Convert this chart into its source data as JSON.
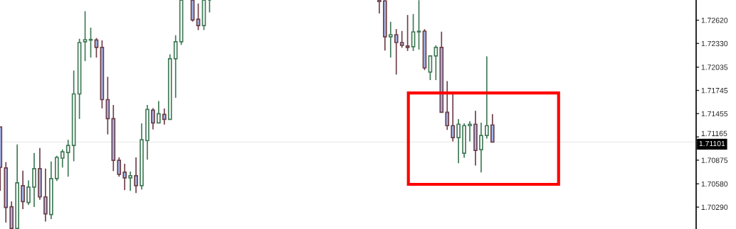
{
  "chart_data": {
    "type": "candlestick",
    "categories": [
      null,
      null,
      null,
      null,
      null,
      null,
      null,
      null,
      null,
      null,
      null,
      null,
      null,
      null,
      null,
      null,
      null,
      null,
      null,
      null,
      null,
      null,
      null,
      null,
      null,
      null,
      null,
      null,
      null,
      null,
      null,
      null,
      null,
      null,
      null,
      null,
      null,
      null,
      null,
      null,
      null,
      null,
      null,
      null,
      null,
      null,
      null,
      null,
      null,
      null,
      null,
      null,
      null,
      null,
      null,
      null,
      null,
      null,
      null,
      null,
      null,
      null,
      null,
      null,
      null,
      null,
      null,
      null,
      null,
      null,
      null,
      null,
      null,
      null,
      null,
      null,
      null,
      null,
      null,
      null,
      null,
      null,
      null,
      null,
      null,
      null,
      null,
      null,
      null,
      null,
      null,
      null,
      null,
      null,
      null,
      null,
      null,
      null,
      null,
      null,
      null,
      null,
      null,
      null,
      null,
      null,
      null,
      null,
      null,
      null,
      null,
      null,
      null,
      null,
      null,
      null,
      null,
      null,
      null,
      null,
      null,
      null,
      null,
      null
    ],
    "ohlc": [
      [
        1.7129,
        1.7129,
        1.70493,
        1.70786
      ],
      [
        1.70778,
        1.70851,
        1.70097,
        1.70285
      ],
      [
        1.70294,
        1.70361,
        1.70025,
        1.70025
      ],
      [
        1.70025,
        1.7107,
        1.70025,
        1.70593
      ],
      [
        1.70558,
        1.70743,
        1.70264,
        1.70358
      ],
      [
        1.70347,
        1.70622,
        1.70317,
        1.7054
      ],
      [
        1.7054,
        1.70965,
        1.70291,
        1.70769
      ],
      [
        1.70769,
        1.71026,
        1.70382,
        1.70417
      ],
      [
        1.70417,
        1.70771,
        1.7011,
        1.70206
      ],
      [
        1.70197,
        1.70859,
        1.70141,
        1.70646
      ],
      [
        1.70646,
        1.7093,
        1.70616,
        1.7091
      ],
      [
        1.70901,
        1.71009,
        1.70783,
        1.7098
      ],
      [
        1.70971,
        1.71129,
        1.70669,
        1.71059
      ],
      [
        1.71059,
        1.71993,
        1.70862,
        1.71701
      ],
      [
        1.71701,
        1.72389,
        1.71389,
        1.72342
      ],
      [
        1.72351,
        1.72732,
        1.7211,
        1.72377
      ],
      [
        1.72372,
        1.72527,
        1.72154,
        1.7238
      ],
      [
        1.72374,
        1.72398,
        1.72154,
        1.72281
      ],
      [
        1.72281,
        1.72369,
        1.71521,
        1.7163
      ],
      [
        1.7163,
        1.71914,
        1.71196,
        1.71393
      ],
      [
        1.71393,
        1.71563,
        1.70739,
        1.70874
      ],
      [
        1.70874,
        1.7091,
        1.70669,
        1.70699
      ],
      [
        1.70725,
        1.7083,
        1.70502,
        1.70655
      ],
      [
        1.70655,
        1.70734,
        1.70493,
        1.70681
      ],
      [
        1.70681,
        1.7091,
        1.70466,
        1.70558
      ],
      [
        1.70558,
        1.71334,
        1.7051,
        1.71129
      ],
      [
        1.7112,
        1.71563,
        1.7088,
        1.71507
      ],
      [
        1.71498,
        1.71525,
        1.71258,
        1.7134
      ],
      [
        1.7134,
        1.71613,
        1.7134,
        1.71454
      ],
      [
        1.71446,
        1.71519,
        1.71319,
        1.71384
      ],
      [
        1.71384,
        1.72195,
        1.71384,
        1.7214
      ],
      [
        1.7214,
        1.72433,
        1.71653,
        1.72351
      ],
      [
        1.72351,
        1.7287,
        1.72312,
        1.7287
      ],
      null,
      [
        1.7287,
        1.7287,
        1.72602,
        1.72624
      ],
      [
        1.72632,
        1.72828,
        1.72497,
        1.72553
      ],
      [
        1.72553,
        1.7287,
        1.72497,
        1.7287
      ],
      [
        1.7287,
        1.7287,
        1.72717,
        1.7287
      ],
      null,
      null,
      null,
      null,
      null,
      null,
      null,
      null,
      null,
      null,
      null,
      null,
      null,
      null,
      null,
      null,
      null,
      null,
      null,
      null,
      null,
      null,
      null,
      null,
      null,
      null,
      null,
      null,
      null,
      [
        1.7287,
        1.7287,
        1.72703,
        1.72852
      ],
      [
        1.72861,
        1.7287,
        1.72242,
        1.72413
      ],
      [
        1.72413,
        1.726,
        1.72154,
        1.72439
      ],
      [
        1.72439,
        1.72509,
        1.71943,
        1.72342
      ],
      [
        1.72342,
        1.72486,
        1.72277,
        1.72307
      ],
      [
        1.72298,
        1.72685,
        1.72237,
        1.72281
      ],
      [
        1.7229,
        1.72697,
        1.72237,
        1.72474
      ],
      [
        1.72474,
        1.7287,
        1.72254,
        1.72482
      ],
      [
        1.72483,
        1.72509,
        1.71999,
        1.72026
      ],
      [
        1.71973,
        1.72175,
        1.71873,
        1.72175
      ],
      [
        1.72175,
        1.72307,
        1.71873,
        1.72281
      ],
      [
        1.72281,
        1.72477,
        1.71472,
        1.71472
      ],
      [
        1.71472,
        1.71861,
        1.71252,
        1.71305
      ],
      [
        1.71305,
        1.71706,
        1.71108,
        1.71156
      ],
      [
        1.71156,
        1.71387,
        1.70836,
        1.71323
      ],
      [
        1.70962,
        1.71334,
        1.70906,
        1.71305
      ],
      [
        1.71305,
        1.7136,
        1.71108,
        1.71323
      ],
      [
        1.71323,
        1.71492,
        1.70809,
        1.70997
      ],
      [
        1.71006,
        1.71343,
        1.70721,
        1.71182
      ],
      [
        1.71182,
        1.72169,
        1.71143,
        1.71305
      ],
      [
        1.71314,
        1.71448,
        1.71101,
        1.71101
      ],
      null,
      null,
      null,
      null,
      null,
      null,
      null,
      null,
      null,
      null,
      null,
      null,
      null,
      null,
      null,
      null,
      null,
      null,
      null,
      null,
      null,
      null,
      null,
      null,
      null,
      null,
      null,
      null,
      null,
      null,
      null,
      null,
      null,
      null,
      null,
      null
    ],
    "colors": [
      "#a4b8ec",
      "#a4b8ec",
      "#a4b8ec",
      "#3f7a55",
      "#a4b8ec",
      "#3f7a55",
      "#3f7a55",
      "#a4b8ec",
      "#a4b8ec",
      "#3f7a55",
      "#3f7a55",
      "#3f7a55",
      "#3f7a55",
      "#3f7a55",
      "#3f7a55",
      "#3f7a55",
      "#3f7a55",
      "#a4b8ec",
      "#a4b8ec",
      "#a4b8ec",
      "#a4b8ec",
      "#a4b8ec",
      "#a4b8ec",
      "#3f7a55",
      "#a4b8ec",
      "#3f7a55",
      "#3f7a55",
      "#a4b8ec",
      "#3f7a55",
      "#a4b8ec",
      "#3f7a55",
      "#3f7a55",
      "#3f7a55",
      null,
      "#a4b8ec",
      "#a4b8ec",
      "#3f7a55",
      "#3f7a55",
      null,
      null,
      null,
      null,
      null,
      null,
      null,
      null,
      null,
      null,
      null,
      null,
      null,
      null,
      null,
      null,
      null,
      null,
      null,
      null,
      null,
      null,
      null,
      null,
      null,
      null,
      null,
      null,
      null,
      "#a4b8ec",
      "#a4b8ec",
      "#3f7a55",
      "#a4b8ec",
      "#a4b8ec",
      "#a4b8ec",
      "#3f7a55",
      "#3f7a55",
      "#a4b8ec",
      "#3f7a55",
      "#3f7a55",
      "#a4b8ec",
      "#a4b8ec",
      "#a4b8ec",
      "#3f7a55",
      "#3f7a55",
      "#3f7a55",
      "#a4b8ec",
      "#3f7a55",
      "#3f7a55",
      "#a4b8ec",
      null,
      null,
      null,
      null,
      null,
      null,
      null,
      null,
      null,
      null,
      null,
      null,
      null,
      null,
      null,
      null,
      null,
      null,
      null,
      null,
      null,
      null,
      null,
      null,
      null,
      null,
      null,
      null,
      null,
      null,
      null,
      null,
      null,
      null,
      null,
      null
    ],
    "ylim": [
      1.70017,
      1.72872
    ],
    "yticks": [
      {
        "value": 1.7029,
        "label": "1.70290"
      },
      {
        "value": 1.7058,
        "label": "1.70580"
      },
      1.70875,
      1.71165,
      1.71455,
      1.71745,
      1.72035,
      {
        "value": 1.7233,
        "label": "1.72330"
      },
      {
        "value": 1.7262,
        "label": "1.72620"
      }
    ],
    "ref_lines": [
      {
        "axis": "y",
        "value": 1.71101,
        "label": "1.71101",
        "color": "#ebebeb"
      }
    ],
    "tick_labels": "y",
    "grid": false
  }
}
